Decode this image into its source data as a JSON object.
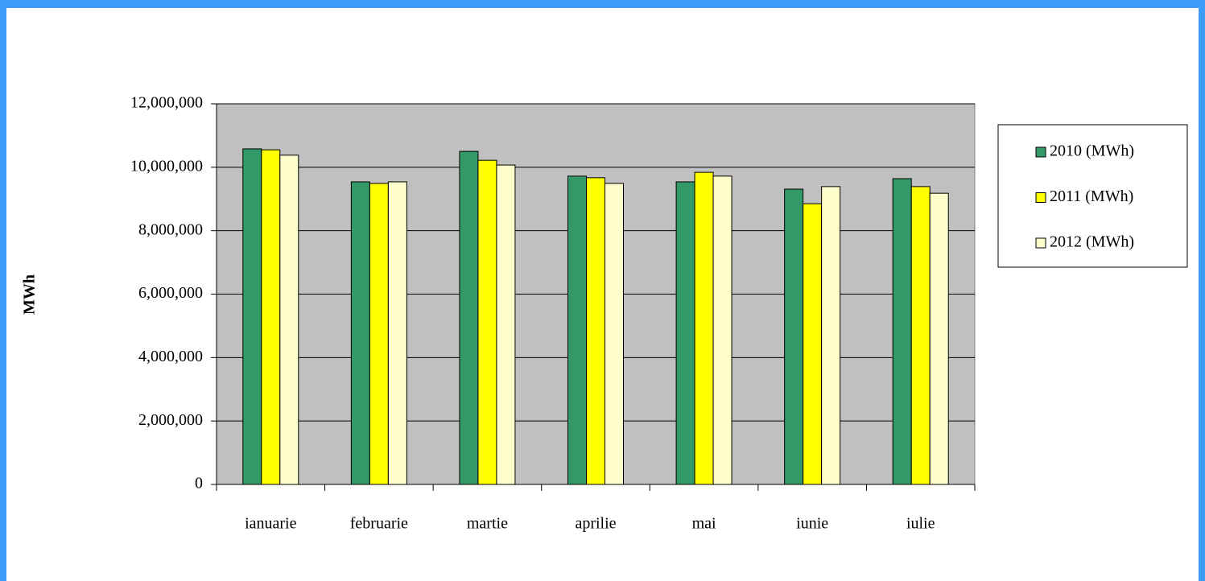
{
  "chart_data": {
    "type": "bar",
    "y_label": "MWh",
    "categories": [
      "ianuarie",
      "februarie",
      "martie",
      "aprilie",
      "mai",
      "iunie",
      "iulie"
    ],
    "series": [
      {
        "name": "2010 (MWh)",
        "color": "#339966",
        "values": [
          10580000,
          9540000,
          10500000,
          9720000,
          9540000,
          9310000,
          9640000
        ]
      },
      {
        "name": "2011 (MWh)",
        "color": "#ffff00",
        "values": [
          10550000,
          9490000,
          10220000,
          9670000,
          9840000,
          8850000,
          9390000
        ]
      },
      {
        "name": "2012 (MWh)",
        "color": "#ffffcc",
        "values": [
          10380000,
          9540000,
          10070000,
          9490000,
          9720000,
          9390000,
          9180000
        ]
      }
    ],
    "ylim": [
      0,
      12000000
    ],
    "yticks": [
      0,
      {
        "value": 2000000,
        "label": "2,000,000"
      },
      {
        "value": 4000000,
        "label": "4,000,000"
      },
      {
        "value": 6000000,
        "label": "6,000,000"
      },
      {
        "value": 8000000,
        "label": "8,000,000"
      },
      {
        "value": 10000000,
        "label": "10,000,000"
      },
      {
        "value": 12000000,
        "label": "12,000,000"
      }
    ],
    "grid": true,
    "plot_background": "#c0c0c0",
    "legend": "right"
  }
}
